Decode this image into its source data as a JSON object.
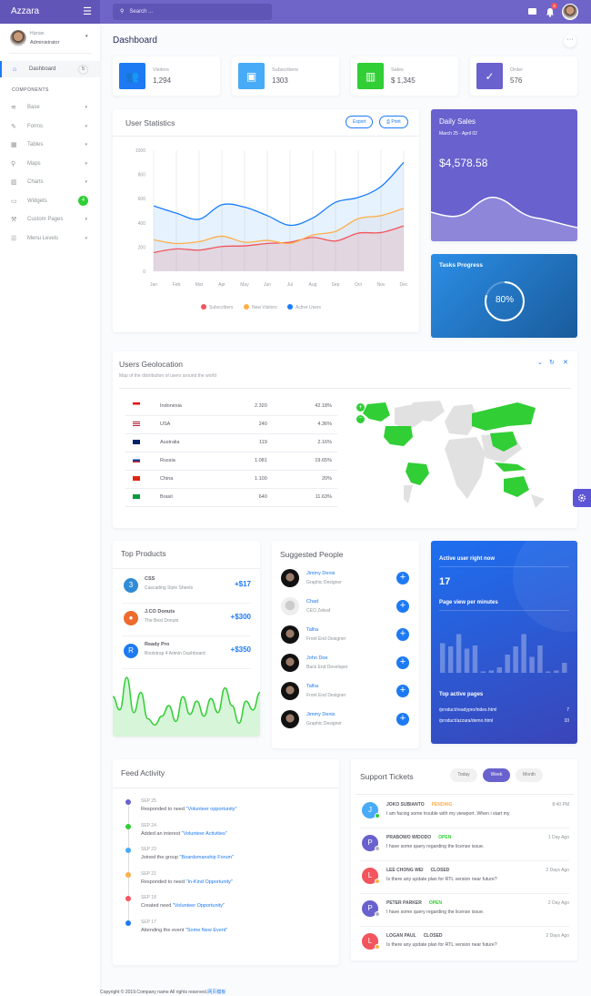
{
  "app": {
    "title": "Azzara",
    "search_placeholder": "Search ...",
    "notification_count": "4"
  },
  "user": {
    "name": "Hizrian",
    "role": "Administrator"
  },
  "sidebar": {
    "dashboard": {
      "label": "Dashboard",
      "badge": "5"
    },
    "section": "COMPONENTS",
    "items": [
      {
        "label": "Base",
        "icon": "layers-icon"
      },
      {
        "label": "Forms",
        "icon": "pen-square-icon"
      },
      {
        "label": "Tables",
        "icon": "table-icon"
      },
      {
        "label": "Maps",
        "icon": "map-marker-icon"
      },
      {
        "label": "Charts",
        "icon": "chart-bar-icon"
      },
      {
        "label": "Widgets",
        "icon": "desktop-icon",
        "badge": "4"
      },
      {
        "label": "Custom Pages",
        "icon": "paint-roller-icon"
      },
      {
        "label": "Menu Levels",
        "icon": "bars-icon"
      }
    ]
  },
  "page": {
    "title": "Dashboard"
  },
  "stats": [
    {
      "label": "Visitors",
      "value": "1,294",
      "color": "#1d7af3"
    },
    {
      "label": "Subscribers",
      "value": "1303",
      "color": "#48abf7"
    },
    {
      "label": "Sales",
      "value": "$ 1,345",
      "color": "#31ce36"
    },
    {
      "label": "Order",
      "value": "576",
      "color": "#6861ce"
    }
  ],
  "user_stats": {
    "title": "User Statistics",
    "export": "Export",
    "print": "Print"
  },
  "chart_data": {
    "type": "area",
    "categories": [
      "Jan",
      "Feb",
      "Mar",
      "Apr",
      "May",
      "Jun",
      "Jul",
      "Aug",
      "Sep",
      "Oct",
      "Nov",
      "Dec"
    ],
    "ylim": [
      0,
      1000
    ],
    "yticks": [
      "0",
      "200",
      "400",
      "600",
      "800",
      "1000"
    ],
    "grid": true,
    "legend": "bottom",
    "series": [
      {
        "name": "Subscribers",
        "color": "#f3545d",
        "values": [
          155,
          185,
          175,
          205,
          210,
          230,
          240,
          280,
          250,
          315,
          320,
          375
        ]
      },
      {
        "name": "New Visitors",
        "color": "#fdaf4b",
        "values": [
          260,
          230,
          245,
          290,
          240,
          255,
          230,
          300,
          330,
          435,
          460,
          520
        ]
      },
      {
        "name": "Active Users",
        "color": "#177dff",
        "values": [
          540,
          480,
          430,
          550,
          530,
          460,
          380,
          440,
          570,
          610,
          700,
          900
        ]
      }
    ]
  },
  "daily_sales": {
    "title": "Daily Sales",
    "range": "March 25 - April 02",
    "amount": "$4,578.58"
  },
  "tasks": {
    "title": "Tasks Progress",
    "percent": 80,
    "label": "80%"
  },
  "geo": {
    "title": "Users Geolocation",
    "subtitle": "Map of the distribution of users around the world",
    "rows": [
      {
        "country": "Indonesia",
        "users": "2.320",
        "pct": "42.18%"
      },
      {
        "country": "USA",
        "users": "240",
        "pct": "4.36%"
      },
      {
        "country": "Australia",
        "users": "119",
        "pct": "2.16%"
      },
      {
        "country": "Russia",
        "users": "1.081",
        "pct": "19.65%"
      },
      {
        "country": "China",
        "users": "1.100",
        "pct": "20%"
      },
      {
        "country": "Brasil",
        "users": "640",
        "pct": "11.63%"
      }
    ]
  },
  "top_products": {
    "title": "Top Products",
    "items": [
      {
        "name": "CSS",
        "desc": "Cascading Style Sheets",
        "amount": "+$17"
      },
      {
        "name": "J.CO Donuts",
        "desc": "The Best Donuts",
        "amount": "+$300"
      },
      {
        "name": "Ready Pro",
        "desc": "Bootstrap 4 Admin Dashboard",
        "amount": "+$350"
      }
    ],
    "sparkline": [
      40,
      25,
      62,
      22,
      45,
      15,
      8,
      18,
      30,
      12,
      40,
      20,
      35,
      18,
      38,
      22,
      50,
      30,
      10,
      35,
      25,
      45
    ]
  },
  "suggested": {
    "title": "Suggested People",
    "people": [
      {
        "name": "Jimmy Denis",
        "role": "Graphic Designer"
      },
      {
        "name": "Chad",
        "role": "CEO Zeleaf"
      },
      {
        "name": "Talha",
        "role": "Front End Designer"
      },
      {
        "name": "John Doe",
        "role": "Back End Developer"
      },
      {
        "name": "Talha",
        "role": "Front End Designer"
      },
      {
        "name": "Jimmy Denis",
        "role": "Graphic Designer"
      }
    ]
  },
  "active": {
    "title": "Active user right now",
    "count": "17",
    "pv_title": "Page view per minutes",
    "bars": [
      0.65,
      0.58,
      0.85,
      0.53,
      0.6,
      0.02,
      0.05,
      0.12,
      0.4,
      0.58,
      0.85,
      0.35,
      0.6,
      0.02,
      0.05,
      0.22
    ],
    "pages_title": "Top active pages",
    "pages": [
      {
        "path": "/product/readypro/index.html",
        "count": "7"
      },
      {
        "path": "/product/azzara/demo.html",
        "count": "10"
      }
    ]
  },
  "feed": {
    "title": "Feed Activity",
    "items": [
      {
        "date": "SEP 25",
        "text": "Responded to need ",
        "link": "\"Volunteer opportunity\"",
        "color": "#6861ce"
      },
      {
        "date": "SEP 24",
        "text": "Added an interest ",
        "link": "\"Volunteer Activities\"",
        "color": "#31ce36"
      },
      {
        "date": "SEP 23",
        "text": "Joined the group ",
        "link": "\"Boardsmanship Forum\"",
        "color": "#48abf7"
      },
      {
        "date": "SEP 21",
        "text": "Responded to need ",
        "link": "\"In-Kind Opportunity\"",
        "color": "#fdaf4b"
      },
      {
        "date": "SEP 18",
        "text": "Created need ",
        "link": "\"Volunteer Opportunity\"",
        "color": "#f3545d"
      },
      {
        "date": "SEP 17",
        "text": "Attending the event ",
        "link": "\"Some New Event\"",
        "color": "#1d7af3"
      }
    ]
  },
  "tickets": {
    "title": "Support Tickets",
    "filters": [
      "Today",
      "Week",
      "Month"
    ],
    "items": [
      {
        "initial": "J",
        "name": "JOKO SUBIANTO",
        "status": "PENDING",
        "status_color": "#fdaf4b",
        "msg": "I am facing some trouble with my viewport. When i start my",
        "time": "8:40 PM",
        "color": "#48abf7",
        "dot": "#31ce36"
      },
      {
        "initial": "P",
        "name": "PRABOWO WIDODO",
        "status": "OPEN",
        "status_color": "#31ce36",
        "msg": "I have some query regarding the license issue.",
        "time": "1 Day Ago",
        "color": "#6861ce",
        "dot": "#b1b5c0"
      },
      {
        "initial": "L",
        "name": "LEE CHONG WEI",
        "status": "CLOSED",
        "status_color": "#575962",
        "msg": "Is there any update plan for RTL version near future?",
        "time": "2 Days Ago",
        "color": "#f3545d",
        "dot": "#fdaf4b"
      },
      {
        "initial": "P",
        "name": "PETER PARKER",
        "status": "OPEN",
        "status_color": "#31ce36",
        "msg": "I have some query regarding the license issue.",
        "time": "2 Day Ago",
        "color": "#6861ce",
        "dot": "#b1b5c0"
      },
      {
        "initial": "L",
        "name": "LOGAN PAUL",
        "status": "CLOSED",
        "status_color": "#575962",
        "msg": "Is there any update plan for RTL version near future?",
        "time": "2 Days Ago",
        "color": "#f3545d",
        "dot": "#fdaf4b"
      }
    ]
  },
  "footer": {
    "text": "Copyright © 2019.Company name All rights reserved.",
    "link": "网页模板"
  }
}
